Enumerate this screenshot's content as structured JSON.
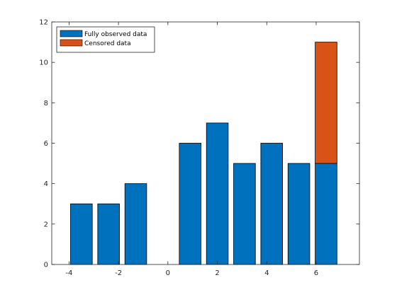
{
  "chart_data": {
    "type": "bar",
    "stacked": true,
    "x": [
      -3.5,
      -2.4,
      -1.3,
      0.9,
      2.0,
      3.1,
      4.2,
      5.3,
      6.4
    ],
    "series": [
      {
        "name": "Fully observed data",
        "color": "#0072BD",
        "values": [
          3,
          3,
          4,
          6,
          7,
          5,
          6,
          5,
          5
        ]
      },
      {
        "name": "Censored data",
        "color": "#D95319",
        "values": [
          0,
          0,
          0,
          0,
          0,
          0,
          0,
          0,
          6
        ]
      }
    ],
    "bar_width": 0.88,
    "title": "",
    "xlabel": "",
    "ylabel": "",
    "xlim": [
      -4.7,
      7.75
    ],
    "ylim": [
      0,
      12
    ],
    "xticks": [
      -4,
      -2,
      0,
      2,
      4,
      6
    ],
    "yticks": [
      0,
      2,
      4,
      6,
      8,
      10,
      12
    ],
    "grid": false,
    "legend_position": "top-left"
  }
}
